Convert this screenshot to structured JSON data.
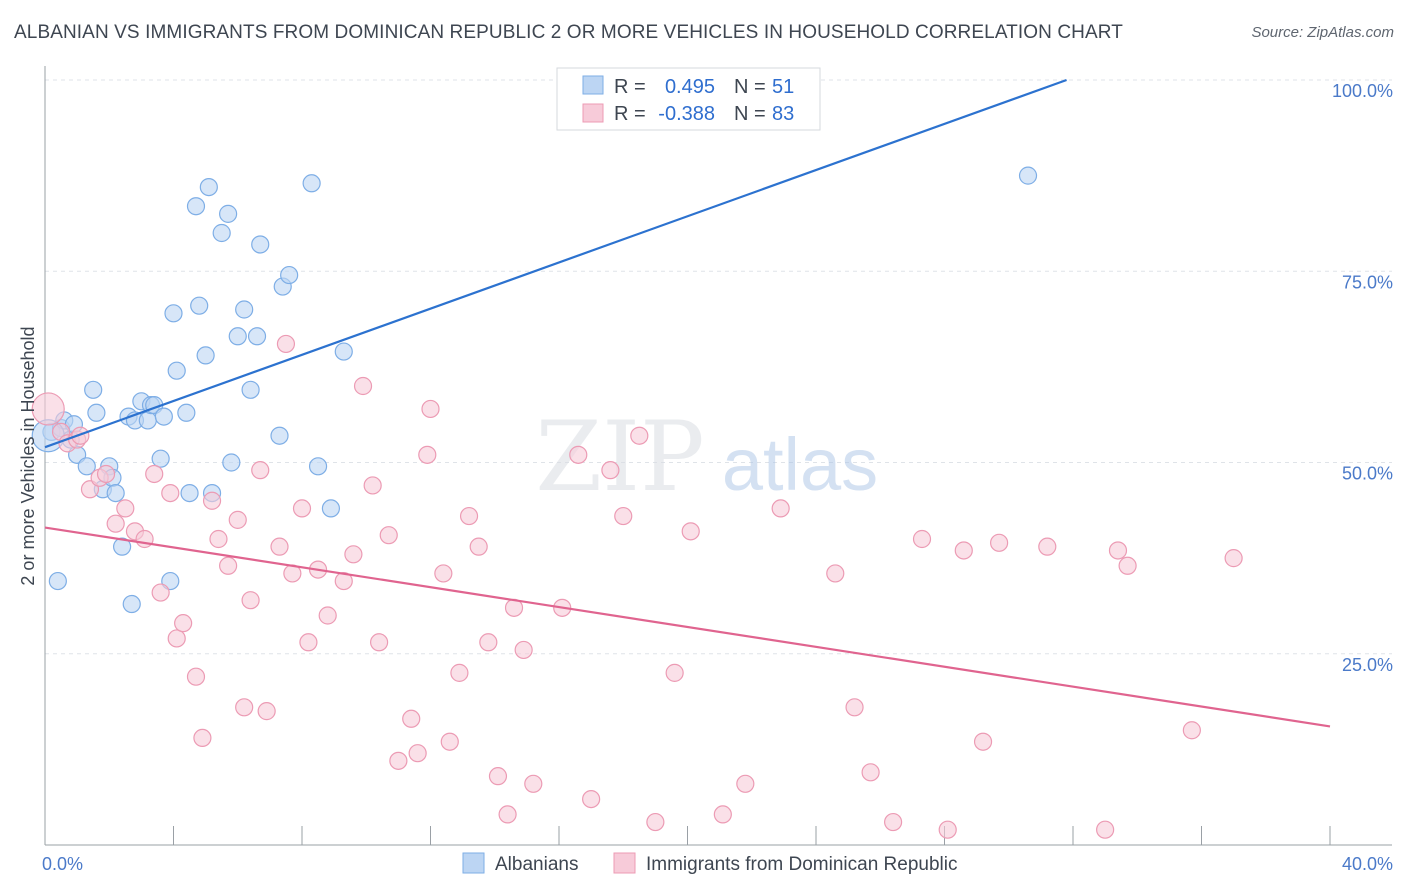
{
  "title": "ALBANIAN VS IMMIGRANTS FROM DOMINICAN REPUBLIC 2 OR MORE VEHICLES IN HOUSEHOLD CORRELATION CHART",
  "source": "Source: ZipAtlas.com",
  "watermark": {
    "zip": "ZIP",
    "atlas": "atlas"
  },
  "stats_box": {
    "rows": [
      {
        "r_label": "R =",
        "r_value": "0.495",
        "n_label": "N =",
        "n_value": "51"
      },
      {
        "r_label": "R =",
        "r_value": "-0.388",
        "n_label": "N =",
        "n_value": "83"
      }
    ]
  },
  "chart_data": {
    "type": "scatter",
    "title": "ALBANIAN VS IMMIGRANTS FROM DOMINICAN REPUBLIC 2 OR MORE VEHICLES IN HOUSEHOLD CORRELATION CHART",
    "xlabel": "",
    "ylabel": "2 or more Vehicles in Household",
    "xlim": [
      0,
      40
    ],
    "ylim": [
      0,
      100
    ],
    "x_tick_labels": [
      {
        "value": 0,
        "label": "0.0%"
      },
      {
        "value": 40,
        "label": "40.0%"
      }
    ],
    "y_tick_labels": [
      {
        "value": 25,
        "label": "25.0%"
      },
      {
        "value": 50,
        "label": "50.0%"
      },
      {
        "value": 75,
        "label": "75.0%"
      },
      {
        "value": 100,
        "label": "100.0%"
      }
    ],
    "grid": true,
    "legend_position": "bottom-center",
    "series": [
      {
        "name": "Albanians",
        "color": "#7eaee6",
        "fill": "#bcd5f3",
        "line_color": "#2c72cf",
        "r": 0.495,
        "n": 51,
        "trend": {
          "x": [
            0,
            31.8
          ],
          "y": [
            52.0,
            100.0
          ]
        },
        "points": [
          [
            0.2,
            54.0
          ],
          [
            0.5,
            54.5
          ],
          [
            0.6,
            55.5
          ],
          [
            0.8,
            53.0
          ],
          [
            0.9,
            55.0
          ],
          [
            1.0,
            51.0
          ],
          [
            1.3,
            49.5
          ],
          [
            1.5,
            59.5
          ],
          [
            1.6,
            56.5
          ],
          [
            1.8,
            46.5
          ],
          [
            2.0,
            49.5
          ],
          [
            2.1,
            48.0
          ],
          [
            2.2,
            46.0
          ],
          [
            2.4,
            39.0
          ],
          [
            2.6,
            56.0
          ],
          [
            2.7,
            31.5
          ],
          [
            2.8,
            55.5
          ],
          [
            3.0,
            58.0
          ],
          [
            3.2,
            55.5
          ],
          [
            3.3,
            57.5
          ],
          [
            3.4,
            57.5
          ],
          [
            3.6,
            50.5
          ],
          [
            3.7,
            56.0
          ],
          [
            3.9,
            34.5
          ],
          [
            4.0,
            69.5
          ],
          [
            4.1,
            62.0
          ],
          [
            4.4,
            56.5
          ],
          [
            4.5,
            46.0
          ],
          [
            4.7,
            83.5
          ],
          [
            4.8,
            70.5
          ],
          [
            5.0,
            64.0
          ],
          [
            5.1,
            86.0
          ],
          [
            5.2,
            46.0
          ],
          [
            5.5,
            80.0
          ],
          [
            5.7,
            82.5
          ],
          [
            5.8,
            50.0
          ],
          [
            6.0,
            66.5
          ],
          [
            6.2,
            70.0
          ],
          [
            6.4,
            59.5
          ],
          [
            6.6,
            66.5
          ],
          [
            6.7,
            78.5
          ],
          [
            7.3,
            53.5
          ],
          [
            7.4,
            73.0
          ],
          [
            7.6,
            74.5
          ],
          [
            8.3,
            86.5
          ],
          [
            8.5,
            49.5
          ],
          [
            8.9,
            44.0
          ],
          [
            9.3,
            64.5
          ],
          [
            0.4,
            34.5
          ],
          [
            30.6,
            87.5
          ],
          [
            0.1,
            53.5
          ]
        ]
      },
      {
        "name": "Immigrants from Dominican Republic",
        "color": "#ec9bb4",
        "fill": "#f7cbd9",
        "line_color": "#e0648f",
        "r": -0.388,
        "n": 83,
        "trend": {
          "x": [
            0,
            40
          ],
          "y": [
            41.5,
            15.5
          ]
        },
        "points": [
          [
            0.1,
            57.0
          ],
          [
            0.5,
            54.0
          ],
          [
            0.7,
            52.5
          ],
          [
            1.0,
            53.0
          ],
          [
            1.1,
            53.5
          ],
          [
            1.4,
            46.5
          ],
          [
            1.7,
            48.0
          ],
          [
            1.9,
            48.5
          ],
          [
            2.2,
            42.0
          ],
          [
            2.5,
            44.0
          ],
          [
            2.8,
            41.0
          ],
          [
            3.1,
            40.0
          ],
          [
            3.4,
            48.5
          ],
          [
            3.6,
            33.0
          ],
          [
            3.9,
            46.0
          ],
          [
            4.1,
            27.0
          ],
          [
            4.3,
            29.0
          ],
          [
            4.7,
            22.0
          ],
          [
            4.9,
            14.0
          ],
          [
            5.2,
            45.0
          ],
          [
            5.4,
            40.0
          ],
          [
            5.7,
            36.5
          ],
          [
            6.0,
            42.5
          ],
          [
            6.2,
            18.0
          ],
          [
            6.4,
            32.0
          ],
          [
            6.7,
            49.0
          ],
          [
            6.9,
            17.5
          ],
          [
            7.3,
            39.0
          ],
          [
            7.5,
            65.5
          ],
          [
            7.7,
            35.5
          ],
          [
            8.0,
            44.0
          ],
          [
            8.2,
            26.5
          ],
          [
            8.5,
            36.0
          ],
          [
            8.8,
            30.0
          ],
          [
            9.3,
            34.5
          ],
          [
            9.6,
            38.0
          ],
          [
            9.9,
            60.0
          ],
          [
            10.2,
            47.0
          ],
          [
            10.4,
            26.5
          ],
          [
            10.7,
            40.5
          ],
          [
            11.0,
            11.0
          ],
          [
            11.4,
            16.5
          ],
          [
            11.6,
            12.0
          ],
          [
            11.9,
            51.0
          ],
          [
            12.0,
            57.0
          ],
          [
            12.4,
            35.5
          ],
          [
            12.6,
            13.5
          ],
          [
            12.9,
            22.5
          ],
          [
            13.2,
            43.0
          ],
          [
            13.5,
            39.0
          ],
          [
            13.8,
            26.5
          ],
          [
            14.1,
            9.0
          ],
          [
            14.4,
            4.0
          ],
          [
            14.6,
            31.0
          ],
          [
            14.9,
            25.5
          ],
          [
            15.2,
            8.0
          ],
          [
            16.1,
            31.0
          ],
          [
            16.6,
            51.0
          ],
          [
            17.0,
            6.0
          ],
          [
            17.6,
            49.0
          ],
          [
            18.0,
            43.0
          ],
          [
            18.5,
            53.5
          ],
          [
            19.0,
            3.0
          ],
          [
            19.6,
            22.5
          ],
          [
            20.1,
            41.0
          ],
          [
            21.1,
            4.0
          ],
          [
            21.8,
            8.0
          ],
          [
            22.9,
            44.0
          ],
          [
            24.6,
            35.5
          ],
          [
            25.2,
            18.0
          ],
          [
            25.7,
            9.5
          ],
          [
            26.4,
            3.0
          ],
          [
            27.3,
            40.0
          ],
          [
            28.1,
            2.0
          ],
          [
            28.6,
            38.5
          ],
          [
            29.2,
            13.5
          ],
          [
            29.7,
            39.5
          ],
          [
            31.2,
            39.0
          ],
          [
            33.0,
            2.0
          ],
          [
            33.4,
            38.5
          ],
          [
            33.7,
            36.5
          ],
          [
            35.7,
            15.0
          ],
          [
            37.0,
            37.5
          ]
        ]
      }
    ]
  }
}
